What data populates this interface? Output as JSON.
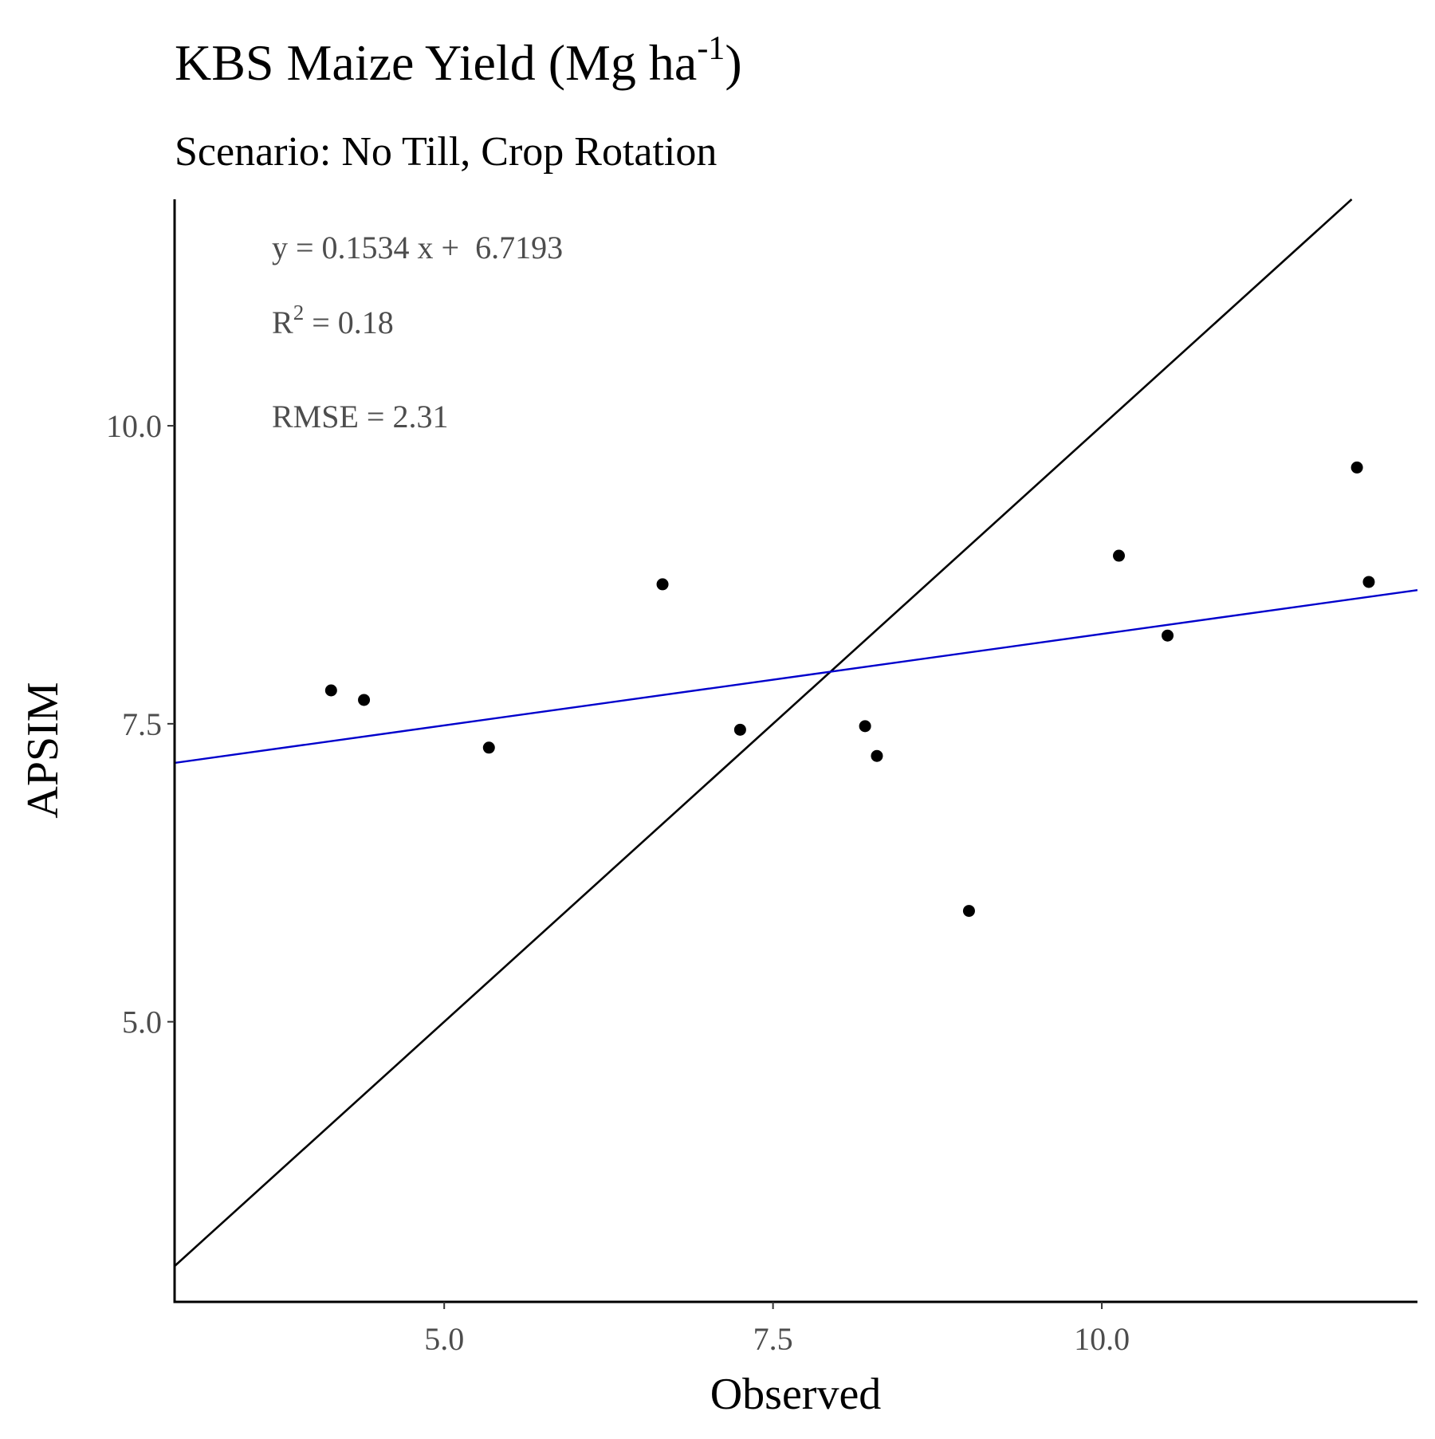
{
  "chart_data": {
    "type": "scatter",
    "title": "KBS Maize Yield (Mg ha",
    "title_superscript": "-1",
    "title_suffix": ")",
    "subtitle": "Scenario: No Till, Crop Rotation",
    "xlabel": "Observed",
    "ylabel": "APSIM",
    "xlim": [
      2.95,
      12.4
    ],
    "ylim": [
      2.65,
      11.9
    ],
    "x_ticks": [
      5.0,
      7.5,
      10.0
    ],
    "x_tick_labels": [
      "5.0",
      "7.5",
      "10.0"
    ],
    "y_ticks": [
      5.0,
      7.5,
      10.0
    ],
    "y_tick_labels": [
      "5.0",
      "7.5",
      "10.0"
    ],
    "grid": false,
    "points": [
      {
        "x": 4.14,
        "y": 7.78
      },
      {
        "x": 4.39,
        "y": 7.7
      },
      {
        "x": 5.34,
        "y": 7.3
      },
      {
        "x": 6.66,
        "y": 8.67
      },
      {
        "x": 7.25,
        "y": 7.45
      },
      {
        "x": 8.2,
        "y": 7.48
      },
      {
        "x": 8.29,
        "y": 7.23
      },
      {
        "x": 8.99,
        "y": 5.93
      },
      {
        "x": 10.13,
        "y": 8.91
      },
      {
        "x": 10.5,
        "y": 8.24
      },
      {
        "x": 11.94,
        "y": 9.65
      },
      {
        "x": 12.03,
        "y": 8.69
      }
    ],
    "identity_line": {
      "slope": 1.0,
      "intercept": 0.0,
      "color": "#000000"
    },
    "regression_line": {
      "slope": 0.1534,
      "intercept": 6.7193,
      "color": "#0000cc"
    },
    "point_color": "#000000",
    "annotations": {
      "equation": "y = 0.1534 x +  6.7193",
      "r2_prefix": "R",
      "r2_superscript": "2",
      "r2_suffix": " = 0.18",
      "rmse": "RMSE = 2.31"
    }
  }
}
